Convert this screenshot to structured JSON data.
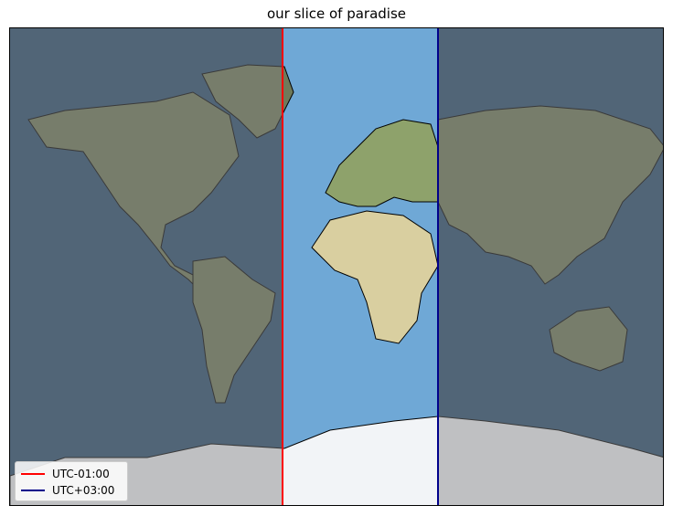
{
  "title": "our slice of paradise",
  "map": {
    "projection": "Miller cylindrical (world)",
    "highlighted_band": {
      "description": "",
      "west_offset": "UTC-01:00",
      "east_offset": "UTC+03:00"
    },
    "outside_band_shade": "gray translucent",
    "land_color": "#6f7a5a",
    "ocean_color": "#2b4f6f",
    "band_ocean_color": "#6fa8d6",
    "band_land_color": "#d9cfa0",
    "antarctica_color": "#f2f4f7"
  },
  "legend": {
    "placement": "lower-left",
    "items": [
      {
        "label": "UTC-01:00",
        "color": "#ff0000"
      },
      {
        "label": "UTC+03:00",
        "color": "#00008b"
      }
    ]
  }
}
